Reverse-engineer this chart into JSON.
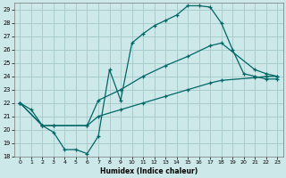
{
  "xlabel": "Humidex (Indice chaleur)",
  "bg_color": "#cce8e8",
  "grid_color": "#aacccc",
  "line_color": "#006666",
  "xlim": [
    -0.5,
    23.5
  ],
  "ylim": [
    18,
    29.5
  ],
  "yticks": [
    18,
    19,
    20,
    21,
    22,
    23,
    24,
    25,
    26,
    27,
    28,
    29
  ],
  "xticks": [
    0,
    1,
    2,
    3,
    4,
    5,
    6,
    7,
    8,
    9,
    10,
    11,
    12,
    13,
    14,
    15,
    16,
    17,
    18,
    19,
    20,
    21,
    22,
    23
  ],
  "line1_x": [
    0,
    1,
    2,
    3,
    4,
    5,
    6,
    7,
    8,
    9,
    10,
    11,
    12,
    13,
    14,
    15,
    16,
    17,
    18,
    19,
    20,
    21,
    22,
    23
  ],
  "line1_y": [
    22.0,
    21.5,
    20.3,
    19.8,
    18.5,
    18.5,
    18.2,
    19.5,
    24.5,
    22.2,
    26.5,
    27.2,
    27.8,
    28.2,
    28.6,
    29.3,
    29.3,
    29.2,
    28.0,
    26.0,
    24.2,
    24.0,
    23.8,
    23.8
  ],
  "line2_x": [
    0,
    2,
    3,
    6,
    7,
    9,
    11,
    13,
    15,
    17,
    18,
    21,
    22,
    23
  ],
  "line2_y": [
    22.0,
    20.3,
    20.3,
    20.3,
    22.2,
    23.0,
    24.0,
    24.8,
    25.5,
    26.3,
    26.5,
    24.5,
    24.2,
    24.0
  ],
  "line3_x": [
    0,
    2,
    3,
    6,
    7,
    9,
    11,
    13,
    15,
    17,
    18,
    21,
    22,
    23
  ],
  "line3_y": [
    22.0,
    20.3,
    20.3,
    20.3,
    21.0,
    21.5,
    22.0,
    22.5,
    23.0,
    23.5,
    23.7,
    23.9,
    24.0,
    24.0
  ]
}
